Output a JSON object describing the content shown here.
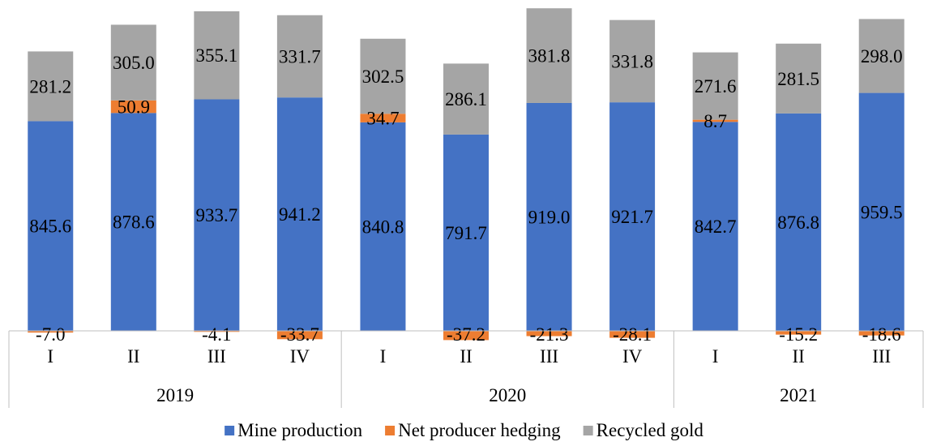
{
  "chart_data": {
    "type": "bar",
    "stacked": true,
    "title": "",
    "categories": [
      "I",
      "II",
      "III",
      "IV",
      "I",
      "II",
      "III",
      "IV",
      "I",
      "II",
      "III"
    ],
    "groups": [
      {
        "label": "2019",
        "count": 4
      },
      {
        "label": "2020",
        "count": 4
      },
      {
        "label": "2021",
        "count": 3
      }
    ],
    "series": [
      {
        "name": "Mine production",
        "color": "#4472c4",
        "values": [
          845.6,
          878.6,
          933.7,
          941.2,
          840.8,
          791.7,
          919.0,
          921.7,
          842.7,
          876.8,
          959.5
        ]
      },
      {
        "name": "Net producer hedging",
        "color": "#ed7d31",
        "values": [
          -7.0,
          50.9,
          -4.1,
          -33.7,
          34.7,
          -37.2,
          -21.3,
          -28.1,
          8.7,
          -15.2,
          -18.6
        ]
      },
      {
        "name": "Recycled gold",
        "color": "#a5a5a5",
        "values": [
          281.2,
          305.0,
          355.1,
          331.7,
          302.5,
          286.1,
          381.8,
          331.8,
          271.6,
          281.5,
          298.0
        ]
      }
    ],
    "legend_position": "bottom",
    "grid": false
  }
}
